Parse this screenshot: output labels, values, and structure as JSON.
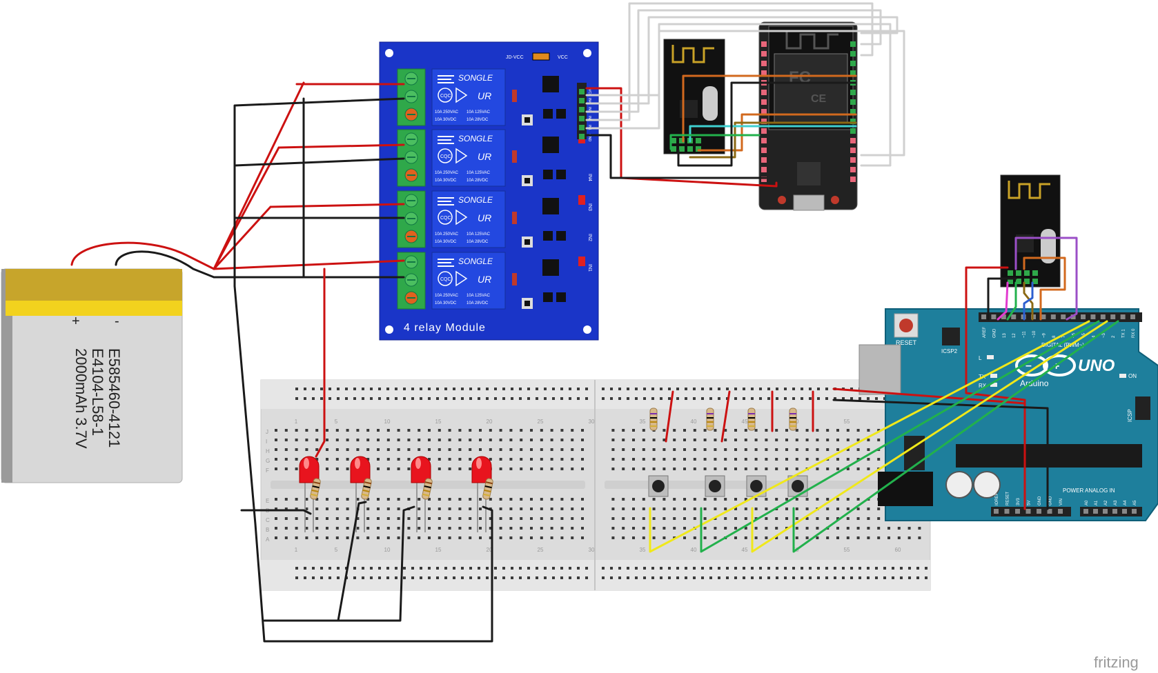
{
  "battery": {
    "plus": "+",
    "minus": "-",
    "line1": "E585460-4121",
    "line2": "E4104-L58-1",
    "line3": "2000mAh 3.7V"
  },
  "relay_module": {
    "title": "4 relay Module",
    "relay_brand": "SONGLE",
    "rating_left_1": "10A 250VAC",
    "rating_left_2": "10A 30VDC",
    "rating_right_1": "10A 125VAC",
    "rating_right_2": "10A 28VDC",
    "jdvcc": "JD-VCC",
    "vcc": "VCC",
    "pins": [
      "GND",
      "IN1",
      "IN2",
      "IN3",
      "IN4",
      "VCC"
    ],
    "in_labels": [
      "IN4",
      "IN3",
      "IN2",
      "IN1"
    ],
    "ul": "UR",
    "cqc": "CQC"
  },
  "esp_board": {
    "fcc": "FC",
    "ce": "CE"
  },
  "arduino": {
    "brand": "Arduino",
    "model": "UNO",
    "reset": "RESET",
    "icsp2": "ICSP2",
    "icsp": "ICSP",
    "digital": "DIGITAL (PWM~)",
    "on": "ON",
    "tx": "TX",
    "rx": "RX",
    "l": "L",
    "aref": "AREF",
    "gnd": "GND",
    "power": "POWER",
    "analog_in": "ANALOG IN",
    "power_pins": [
      "IOREF",
      "RESET",
      "3V3",
      "5V",
      "GND",
      "GND",
      "VIN"
    ],
    "analog_pins": [
      "A0",
      "A1",
      "A2",
      "A3",
      "A4",
      "A5"
    ],
    "digital_pins": [
      "AREF",
      "GND",
      "13",
      "12",
      "~11",
      "~10",
      "~9",
      "8",
      "7",
      "~6",
      "~5",
      "4",
      "~3",
      "2",
      "TX 1",
      "RX 0"
    ]
  },
  "breadboard": {
    "row_letters_top": [
      "J",
      "I",
      "H",
      "G",
      "F"
    ],
    "row_letters_bottom": [
      "E",
      "D",
      "C",
      "B",
      "A"
    ],
    "column_numbers": [
      "1",
      "5",
      "10",
      "15",
      "20",
      "25",
      "30",
      "35",
      "40",
      "45",
      "50",
      "55",
      "60"
    ]
  },
  "watermark": "fritzing",
  "colors": {
    "relay_blue": "#1a35c8",
    "arduino_teal": "#1e7f9c",
    "battery_gold": "#c7a52b",
    "wire_red": "#cc1111",
    "wire_black": "#1a1a1a",
    "wire_yellow": "#f0e81a",
    "wire_green": "#22b14c",
    "wire_orange": "#d2691e",
    "wire_purple": "#9b4fc7",
    "wire_cyan": "#3fd0d0",
    "wire_gray": "#d0d0d0"
  }
}
